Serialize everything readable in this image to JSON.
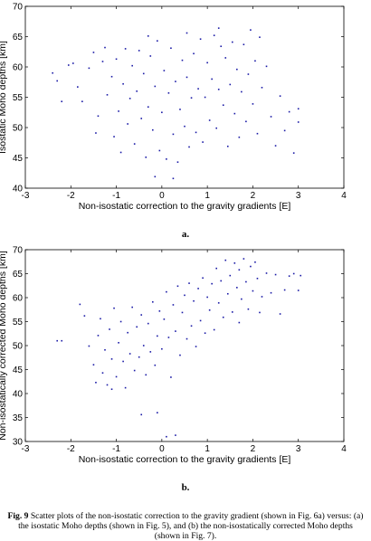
{
  "panel_labels": [
    "a.",
    "b."
  ],
  "caption": {
    "label": "Fig. 9",
    "text": "Scatter plots of the non-isostatic correction to the gravity gradient (shown in Fig. 6a) versus: (a) the isostatic Moho depths (shown in Fig. 5), and (b) the non-isostatically corrected Moho depths (shown in Fig. 7)."
  },
  "colors": {
    "points": "#1a1aa6",
    "axis": "#000000"
  },
  "chart_data": [
    {
      "type": "scatter",
      "xlabel": "Non-isostatic correction to the gravity gradients [E]",
      "ylabel": "Isostatic Moho depths [km]",
      "xlim": [
        -3,
        4
      ],
      "ylim": [
        40,
        70
      ],
      "xticks": [
        -3,
        -2,
        -1,
        0,
        1,
        2,
        3,
        4
      ],
      "yticks": [
        40,
        45,
        50,
        55,
        60,
        65,
        70
      ],
      "grid": false,
      "points": [
        [
          -2.4,
          59.0
        ],
        [
          -2.3,
          57.7
        ],
        [
          -2.2,
          54.3
        ],
        [
          -2.05,
          60.3
        ],
        [
          -1.95,
          60.6
        ],
        [
          -1.85,
          56.7
        ],
        [
          -1.75,
          54.3
        ],
        [
          -1.6,
          59.8
        ],
        [
          -1.5,
          62.4
        ],
        [
          -1.45,
          49.1
        ],
        [
          -1.4,
          51.9
        ],
        [
          -1.3,
          60.9
        ],
        [
          -1.2,
          55.4
        ],
        [
          -1.1,
          58.4
        ],
        [
          -1.05,
          48.5
        ],
        [
          -1.0,
          61.3
        ],
        [
          -0.95,
          52.7
        ],
        [
          -0.9,
          45.9
        ],
        [
          -0.85,
          57.2
        ],
        [
          -0.8,
          63.0
        ],
        [
          -0.75,
          50.6
        ],
        [
          -0.7,
          54.8
        ],
        [
          -0.65,
          60.2
        ],
        [
          -0.6,
          47.3
        ],
        [
          -0.55,
          56.0
        ],
        [
          -0.5,
          62.7
        ],
        [
          -0.45,
          51.5
        ],
        [
          -0.4,
          58.9
        ],
        [
          -0.35,
          45.1
        ],
        [
          -0.3,
          53.4
        ],
        [
          -0.25,
          61.8
        ],
        [
          -0.2,
          49.6
        ],
        [
          -0.15,
          56.8
        ],
        [
          -0.1,
          64.3
        ],
        [
          -0.05,
          46.2
        ],
        [
          0.0,
          52.5
        ],
        [
          0.05,
          59.4
        ],
        [
          0.1,
          44.8
        ],
        [
          0.15,
          55.7
        ],
        [
          0.2,
          63.1
        ],
        [
          0.25,
          48.9
        ],
        [
          0.3,
          57.6
        ],
        [
          0.35,
          44.3
        ],
        [
          0.4,
          53.0
        ],
        [
          0.45,
          61.1
        ],
        [
          0.5,
          50.2
        ],
        [
          0.55,
          58.3
        ],
        [
          0.6,
          46.8
        ],
        [
          0.65,
          54.9
        ],
        [
          0.7,
          62.2
        ],
        [
          0.75,
          49.2
        ],
        [
          0.8,
          56.4
        ],
        [
          0.85,
          64.6
        ],
        [
          0.9,
          47.6
        ],
        [
          0.95,
          55.0
        ],
        [
          1.0,
          60.7
        ],
        [
          1.05,
          51.2
        ],
        [
          1.1,
          58.0
        ],
        [
          1.15,
          65.2
        ],
        [
          1.2,
          49.9
        ],
        [
          1.25,
          56.3
        ],
        [
          1.3,
          63.4
        ],
        [
          1.35,
          53.7
        ],
        [
          1.4,
          61.5
        ],
        [
          1.45,
          46.9
        ],
        [
          1.5,
          57.1
        ],
        [
          1.55,
          64.1
        ],
        [
          1.6,
          52.3
        ],
        [
          1.65,
          59.6
        ],
        [
          1.7,
          48.4
        ],
        [
          1.75,
          55.9
        ],
        [
          1.8,
          63.7
        ],
        [
          1.85,
          51.0
        ],
        [
          1.9,
          58.8
        ],
        [
          1.95,
          66.1
        ],
        [
          2.0,
          53.9
        ],
        [
          2.05,
          61.0
        ],
        [
          2.1,
          49.0
        ],
        [
          2.2,
          56.6
        ],
        [
          2.3,
          60.1
        ],
        [
          2.4,
          51.8
        ],
        [
          2.5,
          47.0
        ],
        [
          2.6,
          55.2
        ],
        [
          2.7,
          49.5
        ],
        [
          2.8,
          52.6
        ],
        [
          2.9,
          45.8
        ],
        [
          3.0,
          53.1
        ],
        [
          3.0,
          50.9
        ],
        [
          2.15,
          64.9
        ],
        [
          1.25,
          66.4
        ],
        [
          0.55,
          65.6
        ],
        [
          -0.3,
          65.1
        ],
        [
          -1.25,
          63.2
        ],
        [
          -0.15,
          41.9
        ],
        [
          0.25,
          41.6
        ]
      ]
    },
    {
      "type": "scatter",
      "xlabel": "Non-isostatic correction to the gravity gradients [E]",
      "ylabel": "Non-isostatically corrected Moho depths [km]",
      "xlim": [
        -3,
        4
      ],
      "ylim": [
        30,
        70
      ],
      "xticks": [
        -3,
        -2,
        -1,
        0,
        1,
        2,
        3,
        4
      ],
      "yticks": [
        30,
        35,
        40,
        45,
        50,
        55,
        60,
        65,
        70
      ],
      "grid": false,
      "points": [
        [
          -2.3,
          51.0
        ],
        [
          -2.2,
          51.0
        ],
        [
          -1.8,
          58.6
        ],
        [
          -1.7,
          56.2
        ],
        [
          -1.6,
          49.9
        ],
        [
          -1.5,
          46.0
        ],
        [
          -1.45,
          42.3
        ],
        [
          -1.4,
          52.1
        ],
        [
          -1.35,
          55.6
        ],
        [
          -1.3,
          44.3
        ],
        [
          -1.25,
          49.1
        ],
        [
          -1.2,
          41.8
        ],
        [
          -1.15,
          53.4
        ],
        [
          -1.1,
          47.2
        ],
        [
          -1.05,
          57.8
        ],
        [
          -1.0,
          43.5
        ],
        [
          -0.95,
          50.6
        ],
        [
          -0.9,
          55.0
        ],
        [
          -0.85,
          46.7
        ],
        [
          -0.8,
          41.2
        ],
        [
          -0.75,
          52.7
        ],
        [
          -0.7,
          48.3
        ],
        [
          -0.65,
          58.0
        ],
        [
          -0.6,
          44.8
        ],
        [
          -0.55,
          53.9
        ],
        [
          -0.5,
          47.6
        ],
        [
          -0.45,
          56.4
        ],
        [
          -0.4,
          50.0
        ],
        [
          -0.35,
          43.9
        ],
        [
          -0.3,
          54.6
        ],
        [
          -0.25,
          48.7
        ],
        [
          -0.2,
          59.1
        ],
        [
          -0.15,
          45.9
        ],
        [
          -0.1,
          52.0
        ],
        [
          -0.05,
          57.2
        ],
        [
          0.0,
          49.3
        ],
        [
          0.05,
          55.5
        ],
        [
          0.1,
          61.2
        ],
        [
          0.15,
          51.7
        ],
        [
          0.2,
          43.4
        ],
        [
          0.25,
          58.5
        ],
        [
          0.3,
          53.0
        ],
        [
          0.35,
          62.4
        ],
        [
          0.4,
          48.0
        ],
        [
          0.45,
          56.9
        ],
        [
          0.5,
          60.5
        ],
        [
          0.55,
          51.4
        ],
        [
          0.6,
          63.0
        ],
        [
          0.65,
          54.1
        ],
        [
          0.7,
          59.3
        ],
        [
          0.75,
          49.8
        ],
        [
          0.8,
          61.9
        ],
        [
          0.85,
          55.2
        ],
        [
          0.9,
          64.1
        ],
        [
          0.95,
          52.6
        ],
        [
          1.0,
          60.1
        ],
        [
          1.05,
          57.4
        ],
        [
          1.1,
          62.9
        ],
        [
          1.15,
          53.3
        ],
        [
          1.2,
          66.1
        ],
        [
          1.25,
          58.9
        ],
        [
          1.3,
          63.5
        ],
        [
          1.35,
          55.9
        ],
        [
          1.4,
          67.8
        ],
        [
          1.45,
          60.8
        ],
        [
          1.5,
          64.6
        ],
        [
          1.55,
          57.0
        ],
        [
          1.6,
          67.2
        ],
        [
          1.65,
          62.1
        ],
        [
          1.7,
          65.8
        ],
        [
          1.75,
          59.7
        ],
        [
          1.8,
          68.1
        ],
        [
          1.85,
          63.3
        ],
        [
          1.9,
          57.6
        ],
        [
          1.95,
          66.5
        ],
        [
          2.0,
          61.4
        ],
        [
          2.05,
          67.4
        ],
        [
          2.1,
          64.0
        ],
        [
          2.2,
          60.2
        ],
        [
          2.3,
          65.1
        ],
        [
          2.4,
          61.0
        ],
        [
          2.5,
          64.8
        ],
        [
          2.6,
          56.6
        ],
        [
          2.7,
          61.6
        ],
        [
          2.8,
          64.5
        ],
        [
          2.9,
          65.0
        ],
        [
          3.0,
          61.5
        ],
        [
          3.05,
          64.6
        ],
        [
          -0.45,
          35.6
        ],
        [
          -0.1,
          36.0
        ],
        [
          0.1,
          31.0
        ],
        [
          0.3,
          31.3
        ],
        [
          -1.1,
          40.9
        ],
        [
          1.7,
          54.8
        ],
        [
          2.15,
          56.9
        ]
      ]
    }
  ]
}
